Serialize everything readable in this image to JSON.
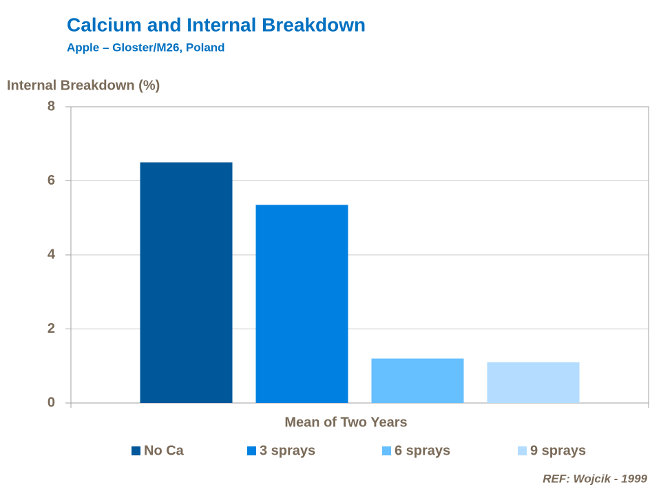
{
  "chart_data": {
    "type": "bar",
    "title": "Calcium and Internal Breakdown",
    "subtitle": "Apple – Gloster/M26, Poland",
    "y_label": "Internal Breakdown (%)",
    "categories": [
      "Mean of Two Years"
    ],
    "series": [
      {
        "name": "No Ca",
        "color": "#00579a",
        "values": [
          6.5
        ]
      },
      {
        "name": "3 sprays",
        "color": "#0080e0",
        "values": [
          5.35
        ]
      },
      {
        "name": "6 sprays",
        "color": "#66bfff",
        "values": [
          1.2
        ]
      },
      {
        "name": "9 sprays",
        "color": "#b3dcff",
        "values": [
          1.1
        ]
      }
    ],
    "ylim": [
      0,
      8
    ],
    "yticks": [
      0,
      2,
      4,
      6,
      8
    ],
    "grid": true,
    "legend": "bottom",
    "source": "REF: Wojcik - 1999"
  }
}
